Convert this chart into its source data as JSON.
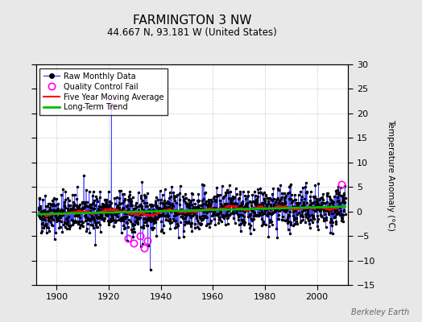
{
  "title": "FARMINGTON 3 NW",
  "subtitle": "44.667 N, 93.181 W (United States)",
  "ylabel": "Temperature Anomaly (°C)",
  "credit": "Berkeley Earth",
  "year_start": 1893,
  "year_end": 2011,
  "ylim": [
    -15,
    30
  ],
  "yticks": [
    -15,
    -10,
    -5,
    0,
    5,
    10,
    15,
    20,
    25,
    30
  ],
  "xticks": [
    1900,
    1920,
    1940,
    1960,
    1980,
    2000
  ],
  "bg_color": "#e8e8e8",
  "plot_bg_color": "#ffffff",
  "raw_line_color": "#4444ff",
  "raw_marker_color": "#000000",
  "ma_color": "#ff0000",
  "trend_color": "#00bb00",
  "qc_color": "#ff00ff",
  "seed": 42,
  "spike_year": 1921,
  "spike_value": 21.5,
  "spike2_year": 1936,
  "spike2_value": -11.8,
  "qc_fail_years": [
    1921.0,
    1927.3,
    1929.5,
    1932.0,
    1933.5,
    1935.0,
    2009.5
  ],
  "qc_fail_values": [
    21.5,
    -5.5,
    -6.5,
    -5.0,
    -7.5,
    -6.0,
    5.5
  ]
}
